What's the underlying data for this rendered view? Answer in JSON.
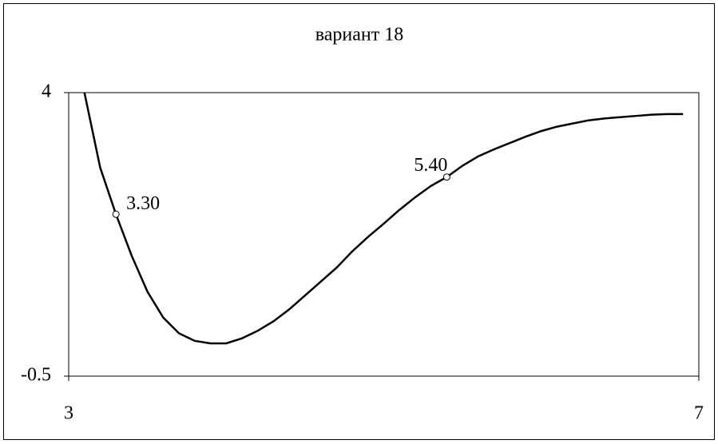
{
  "chart_data": {
    "type": "line",
    "title": "вариант 18",
    "x": [
      3.1,
      3.2,
      3.3,
      3.4,
      3.5,
      3.6,
      3.7,
      3.8,
      3.9,
      4.0,
      4.1,
      4.2,
      4.3,
      4.4,
      4.5,
      4.6,
      4.7,
      4.8,
      4.9,
      5.0,
      5.1,
      5.2,
      5.3,
      5.4,
      5.5,
      5.6,
      5.7,
      5.8,
      5.9,
      6.0,
      6.1,
      6.2,
      6.3,
      6.4,
      6.5,
      6.6,
      6.7,
      6.8,
      6.9
    ],
    "values": [
      4.0,
      2.81,
      2.07,
      1.41,
      0.84,
      0.43,
      0.18,
      0.06,
      0.02,
      0.02,
      0.1,
      0.22,
      0.37,
      0.56,
      0.78,
      1.0,
      1.22,
      1.48,
      1.71,
      1.92,
      2.14,
      2.34,
      2.52,
      2.66,
      2.84,
      2.99,
      3.1,
      3.2,
      3.3,
      3.39,
      3.46,
      3.51,
      3.56,
      3.59,
      3.61,
      3.63,
      3.65,
      3.66,
      3.66
    ],
    "color": "#000000",
    "markers": {
      "x": [
        3.3,
        5.4
      ],
      "values": [
        2.07,
        2.66
      ],
      "labels": [
        "3.30",
        "5.40"
      ]
    },
    "xlim": [
      3,
      7
    ],
    "xticks": [
      3,
      7
    ],
    "ylim": [
      -0.5,
      4
    ],
    "yticks": [
      4,
      -0.5
    ],
    "grid": false
  }
}
